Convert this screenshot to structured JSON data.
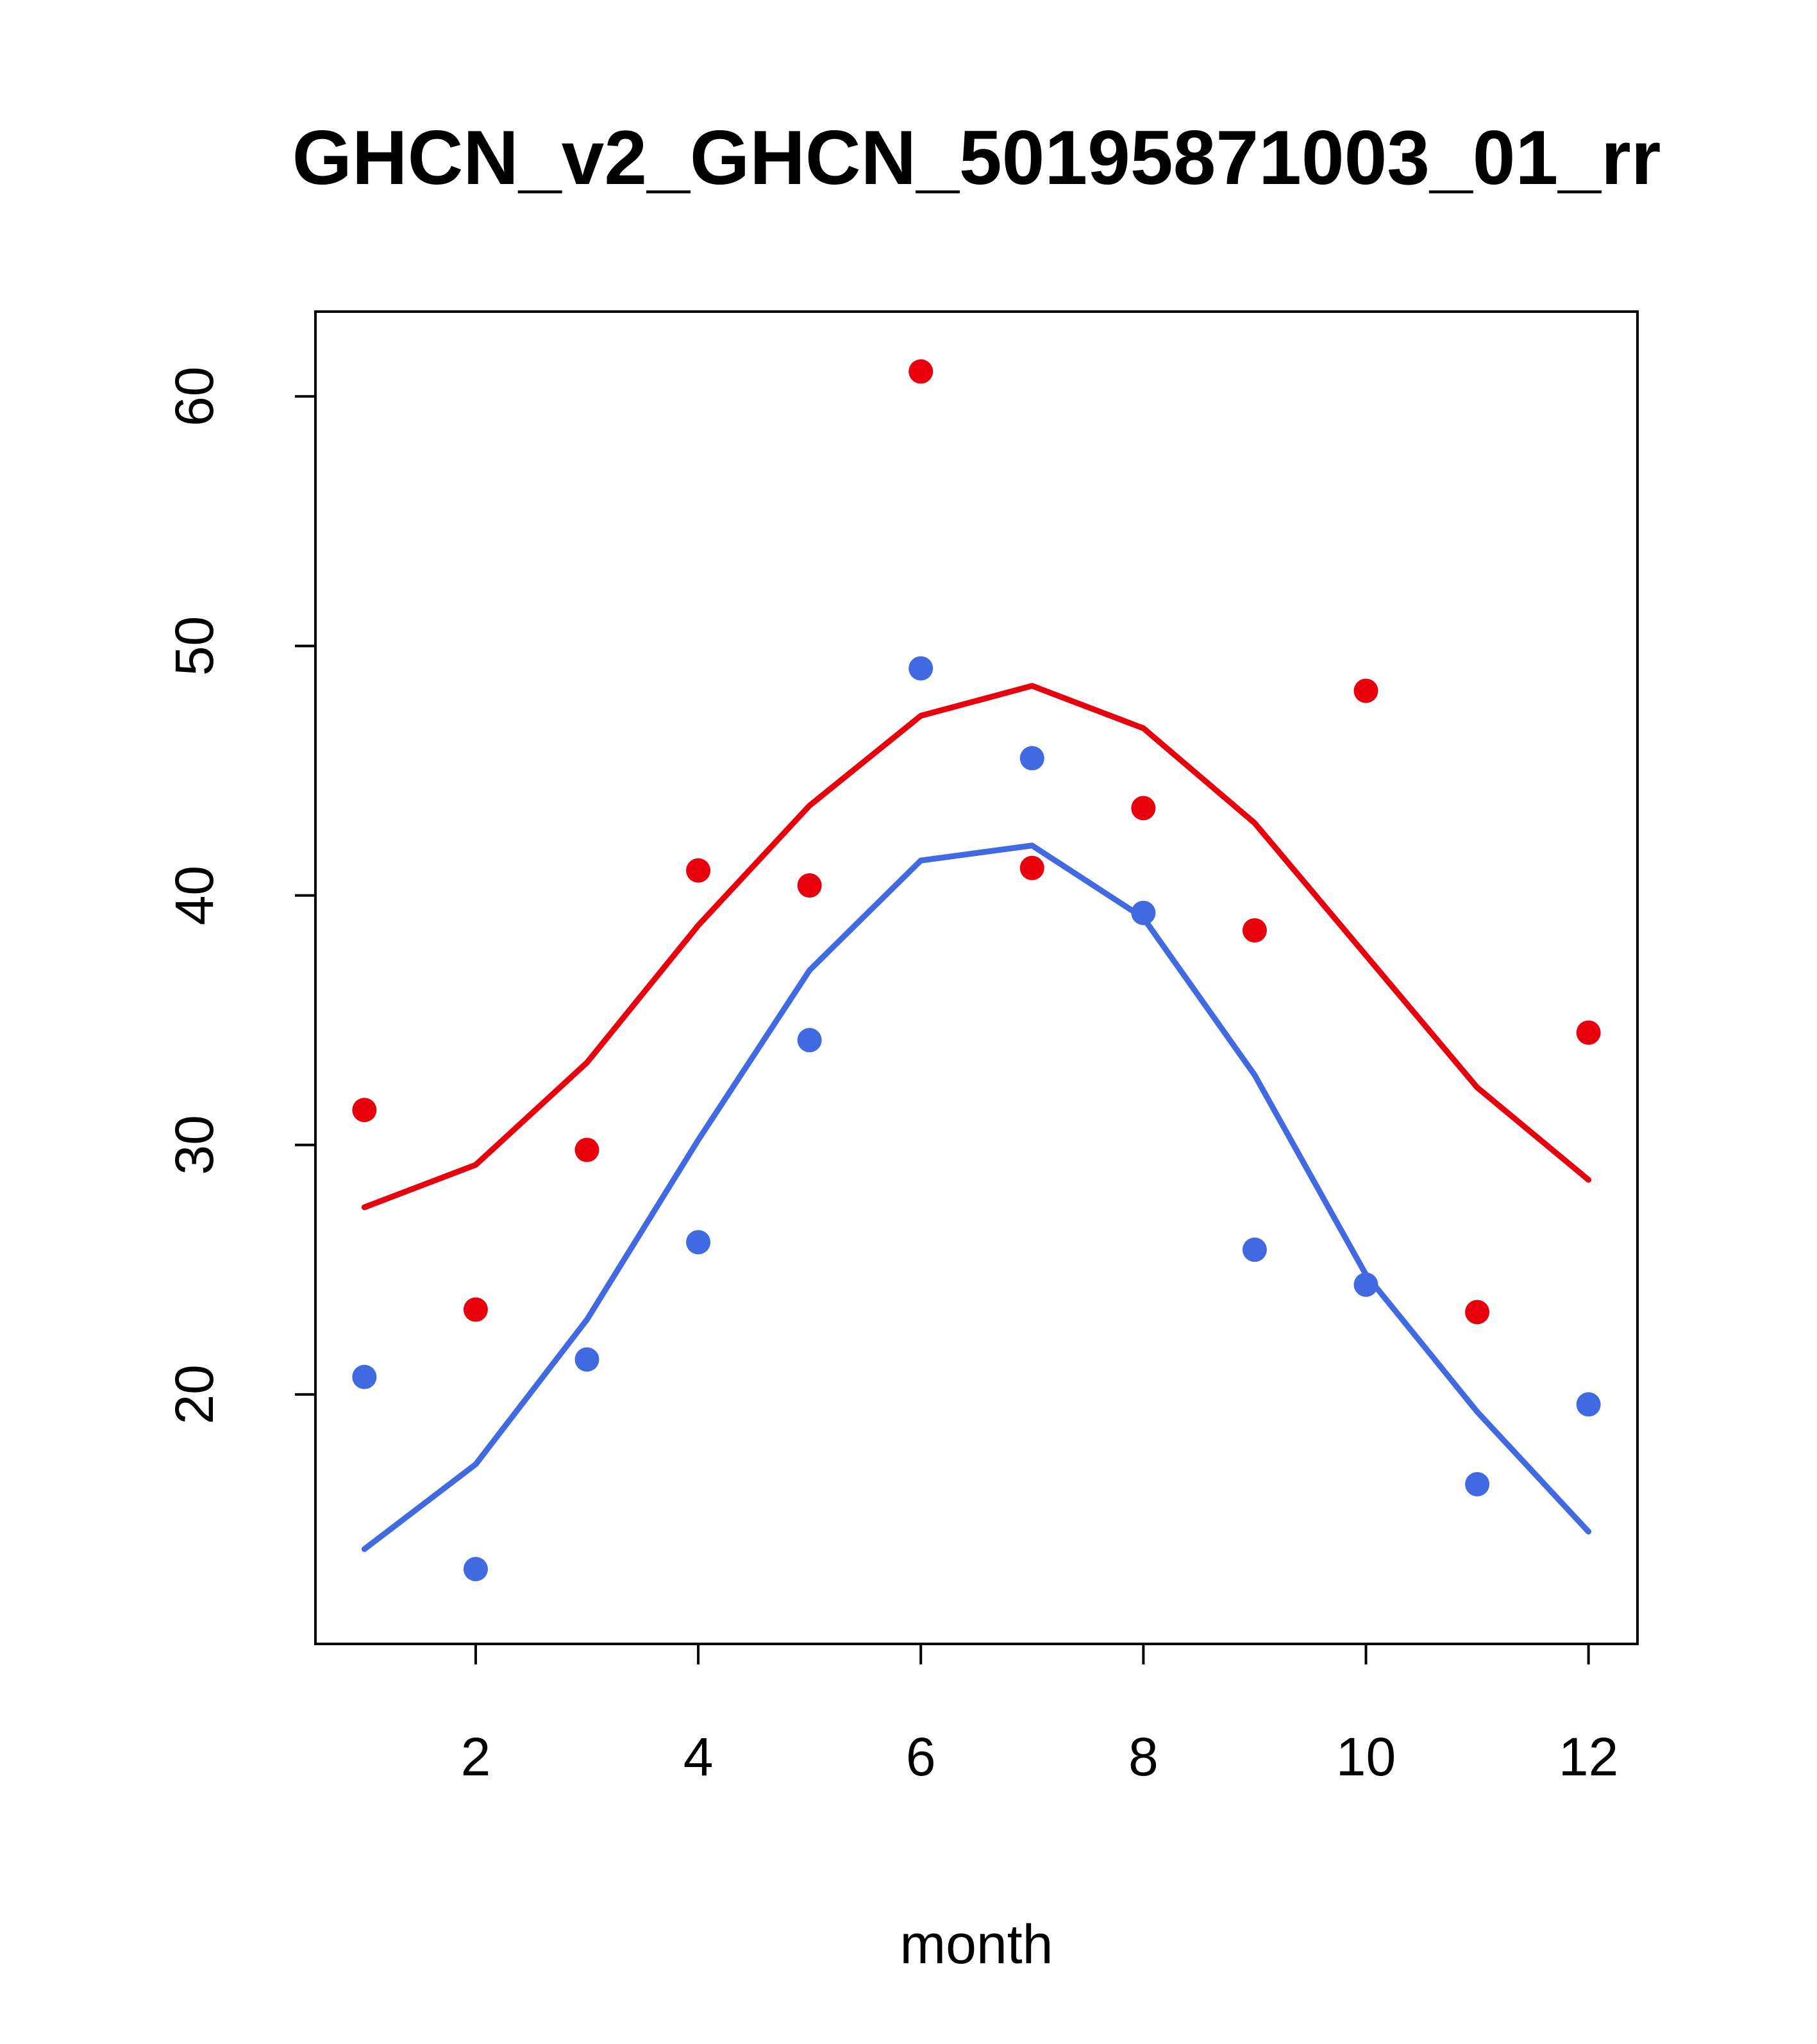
{
  "chart_data": {
    "type": "scatter",
    "title": "GHCN_v2_GHCN_50195871003_01_rr",
    "xlabel": "month",
    "ylabel": "",
    "x": [
      1,
      2,
      3,
      4,
      5,
      6,
      7,
      8,
      9,
      10,
      11,
      12
    ],
    "xticks": [
      2,
      4,
      6,
      8,
      10,
      12
    ],
    "yticks": [
      20,
      30,
      40,
      50,
      60
    ],
    "xlim": [
      0.56,
      12.44
    ],
    "ylim": [
      10.0,
      63.4
    ],
    "grid": false,
    "legend": "none",
    "colors": {
      "red": "#e8000d",
      "blue": "#4169e1",
      "axis": "#000000",
      "background": "#ffffff"
    },
    "series": [
      {
        "name": "red-points",
        "kind": "points",
        "color": "#e8000d",
        "values": [
          31.4,
          23.4,
          29.8,
          41.0,
          40.4,
          61.0,
          41.1,
          43.5,
          38.6,
          48.2,
          23.3,
          34.5
        ]
      },
      {
        "name": "blue-points",
        "kind": "points",
        "color": "#4169e1",
        "values": [
          20.7,
          13.0,
          21.4,
          26.1,
          34.2,
          49.1,
          45.5,
          39.3,
          25.8,
          24.4,
          16.4,
          19.6
        ]
      },
      {
        "name": "red-line",
        "kind": "line",
        "color": "#e8000d",
        "values": [
          27.5,
          29.2,
          33.3,
          38.8,
          43.6,
          47.2,
          48.4,
          46.7,
          42.9,
          37.6,
          32.3,
          28.6
        ]
      },
      {
        "name": "blue-line",
        "kind": "line",
        "color": "#4169e1",
        "values": [
          13.8,
          17.2,
          23.0,
          30.2,
          37.0,
          41.4,
          42.0,
          39.1,
          32.8,
          24.8,
          19.3,
          14.5
        ]
      }
    ]
  },
  "layout_hints": {
    "point_style": "filled-circle",
    "y_tick_label_rotation": "-90"
  }
}
